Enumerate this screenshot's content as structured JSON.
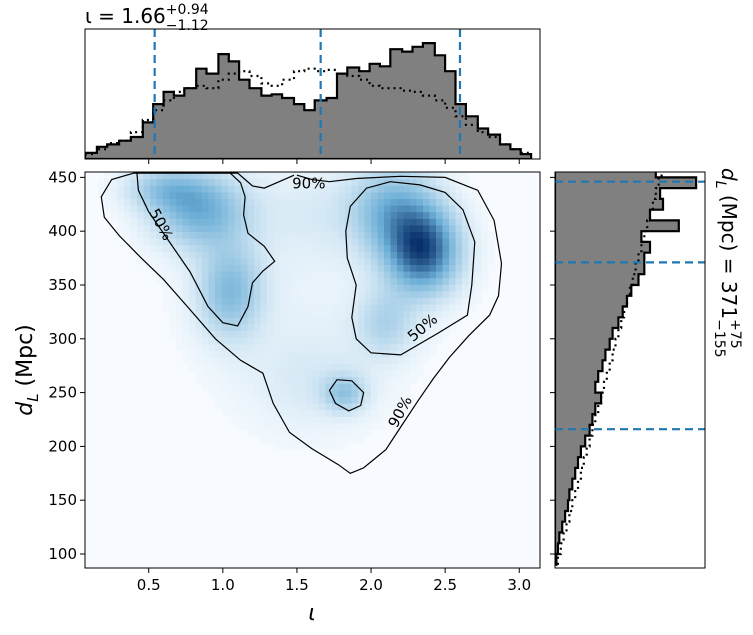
{
  "chart_data": {
    "type": "heatmap",
    "colors": {
      "density_low": "#f7fbff",
      "density_mid": "#6baed6",
      "density_high": "#08306b",
      "histogram_fill": "#808080",
      "histogram_edge": "#000000",
      "quantile_line": "#1f77b4"
    },
    "main": {
      "xlabel": "ι",
      "ylabel_main": "d",
      "ylabel_sub": "L",
      "ylabel_unit": " (Mpc)",
      "xlim": [
        0.07,
        3.14
      ],
      "ylim": [
        87,
        455
      ],
      "x_ticks": [
        0.5,
        1.0,
        1.5,
        2.0,
        2.5,
        3.0
      ],
      "x_tick_labels": [
        "0.5",
        "1.0",
        "1.5",
        "2.0",
        "2.5",
        "3.0"
      ],
      "y_ticks": [
        100,
        150,
        200,
        250,
        300,
        350,
        400,
        450
      ],
      "y_tick_labels": [
        "100",
        "150",
        "200",
        "250",
        "300",
        "350",
        "400",
        "450"
      ],
      "density_peaks": [
        {
          "x": 2.35,
          "y": 382,
          "sx": 0.17,
          "sy": 27,
          "w": 1.0
        },
        {
          "x": 2.15,
          "y": 420,
          "sx": 0.2,
          "sy": 28,
          "w": 0.55
        },
        {
          "x": 2.1,
          "y": 315,
          "sx": 0.14,
          "sy": 22,
          "w": 0.3
        },
        {
          "x": 0.85,
          "y": 420,
          "sx": 0.22,
          "sy": 24,
          "w": 0.6
        },
        {
          "x": 1.05,
          "y": 345,
          "sx": 0.15,
          "sy": 30,
          "w": 0.5
        },
        {
          "x": 0.6,
          "y": 440,
          "sx": 0.18,
          "sy": 14,
          "w": 0.35
        },
        {
          "x": 1.82,
          "y": 250,
          "sx": 0.1,
          "sy": 12,
          "w": 0.38
        },
        {
          "x": 1.6,
          "y": 260,
          "sx": 0.3,
          "sy": 32,
          "w": 0.12
        },
        {
          "x": 1.6,
          "y": 420,
          "sx": 0.28,
          "sy": 30,
          "w": 0.1
        },
        {
          "x": 1.5,
          "y": 340,
          "sx": 0.55,
          "sy": 70,
          "w": 0.06
        }
      ],
      "contours": [
        {
          "level": "90%",
          "points": [
            [
              1.48,
              452
            ],
            [
              1.38,
              446
            ],
            [
              1.28,
              440
            ],
            [
              1.2,
              442
            ],
            [
              1.15,
              448
            ],
            [
              1.1,
              454
            ],
            [
              0.4,
              454
            ],
            [
              0.25,
              448
            ],
            [
              0.18,
              432
            ],
            [
              0.2,
              413
            ],
            [
              0.3,
              396
            ],
            [
              0.45,
              375
            ],
            [
              0.6,
              355
            ],
            [
              0.76,
              330
            ],
            [
              0.95,
              300
            ],
            [
              1.12,
              280
            ],
            [
              1.27,
              268
            ],
            [
              1.34,
              240
            ],
            [
              1.45,
              213
            ],
            [
              1.6,
              198
            ],
            [
              1.78,
              183
            ],
            [
              1.86,
              175
            ],
            [
              1.95,
              180
            ],
            [
              2.1,
              197
            ],
            [
              2.2,
              218
            ],
            [
              2.32,
              243
            ],
            [
              2.42,
              263
            ],
            [
              2.53,
              283
            ],
            [
              2.66,
              303
            ],
            [
              2.8,
              322
            ],
            [
              2.86,
              340
            ],
            [
              2.88,
              370
            ],
            [
              2.83,
              410
            ],
            [
              2.72,
              438
            ],
            [
              2.5,
              450
            ],
            [
              2.2,
              451
            ],
            [
              1.9,
              449
            ],
            [
              1.72,
              446
            ],
            [
              1.6,
              448
            ],
            [
              1.5,
              452
            ]
          ],
          "closed": false
        },
        {
          "level": "50%",
          "points": [
            [
              0.42,
              454
            ],
            [
              0.43,
              438
            ],
            [
              0.5,
              418
            ],
            [
              0.62,
              394
            ],
            [
              0.78,
              362
            ],
            [
              0.9,
              330
            ],
            [
              1.0,
              315
            ],
            [
              1.1,
              312
            ],
            [
              1.17,
              330
            ],
            [
              1.2,
              352
            ],
            [
              1.27,
              363
            ],
            [
              1.35,
              372
            ],
            [
              1.28,
              386
            ],
            [
              1.17,
              398
            ],
            [
              1.14,
              415
            ],
            [
              1.15,
              432
            ],
            [
              1.12,
              445
            ],
            [
              1.05,
              454
            ]
          ],
          "closed": false
        },
        {
          "level": "50%",
          "points": [
            [
              1.84,
              375
            ],
            [
              1.9,
              350
            ],
            [
              1.87,
              320
            ],
            [
              1.9,
              300
            ],
            [
              2.0,
              287
            ],
            [
              2.2,
              285
            ],
            [
              2.45,
              305
            ],
            [
              2.65,
              322
            ],
            [
              2.68,
              350
            ],
            [
              2.7,
              390
            ],
            [
              2.62,
              420
            ],
            [
              2.5,
              436
            ],
            [
              2.33,
              443
            ],
            [
              2.13,
              446
            ],
            [
              1.97,
              440
            ],
            [
              1.86,
              423
            ],
            [
              1.83,
              400
            ],
            [
              1.84,
              375
            ]
          ],
          "closed": true
        },
        {
          "level": "50%",
          "points": [
            [
              1.72,
              252
            ],
            [
              1.77,
              262
            ],
            [
              1.87,
              261
            ],
            [
              1.95,
              250
            ],
            [
              1.93,
              238
            ],
            [
              1.85,
              233
            ],
            [
              1.76,
              240
            ],
            [
              1.72,
              252
            ]
          ],
          "closed": true
        }
      ],
      "contour_labels": [
        {
          "text": "90%",
          "x": 1.58,
          "y": 444,
          "angle": 0
        },
        {
          "text": "50%",
          "x": 0.58,
          "y": 406,
          "angle": 62
        },
        {
          "text": "50%",
          "x": 2.35,
          "y": 310,
          "angle": -40
        },
        {
          "text": "90%",
          "x": 2.2,
          "y": 232,
          "angle": -62
        }
      ]
    },
    "top_histogram": {
      "title_prefix": "ι = 1.66",
      "title_upper": "+0.94",
      "title_lower": "−1.12",
      "quantiles": [
        0.54,
        1.66,
        2.6
      ],
      "bin_edges": [
        0.07,
        0.15,
        0.22,
        0.3,
        0.38,
        0.46,
        0.53,
        0.6,
        0.67,
        0.74,
        0.82,
        0.89,
        0.97,
        1.04,
        1.11,
        1.18,
        1.26,
        1.33,
        1.4,
        1.48,
        1.55,
        1.62,
        1.7,
        1.77,
        1.84,
        1.92,
        1.99,
        2.06,
        2.13,
        2.21,
        2.28,
        2.35,
        2.43,
        2.5,
        2.57,
        2.64,
        2.72,
        2.79,
        2.87,
        2.94,
        3.01,
        3.08
      ],
      "counts": [
        0.05,
        0.1,
        0.12,
        0.15,
        0.18,
        0.3,
        0.45,
        0.55,
        0.52,
        0.58,
        0.74,
        0.7,
        0.86,
        0.8,
        0.65,
        0.58,
        0.52,
        0.53,
        0.5,
        0.45,
        0.4,
        0.48,
        0.5,
        0.7,
        0.75,
        0.72,
        0.78,
        0.76,
        0.9,
        0.88,
        0.92,
        0.95,
        0.85,
        0.72,
        0.45,
        0.35,
        0.25,
        0.2,
        0.12,
        0.08,
        0.04
      ],
      "prior_counts": [
        0.04,
        0.08,
        0.13,
        0.15,
        0.22,
        0.32,
        0.4,
        0.48,
        0.55,
        0.58,
        0.6,
        0.58,
        0.65,
        0.7,
        0.72,
        0.68,
        0.62,
        0.6,
        0.65,
        0.72,
        0.74,
        0.72,
        0.73,
        0.7,
        0.68,
        0.65,
        0.6,
        0.58,
        0.58,
        0.56,
        0.55,
        0.52,
        0.48,
        0.42,
        0.35,
        0.28,
        0.22,
        0.18,
        0.12,
        0.08,
        0.05
      ],
      "ylim": [
        0,
        1.0
      ]
    },
    "right_histogram": {
      "label_main": "d",
      "label_sub": "L",
      "label_value": " (Mpc) = 371",
      "label_upper": "+75",
      "label_lower": "−155",
      "quantiles": [
        216,
        371,
        446
      ],
      "bin_edges": [
        90,
        100,
        110,
        120,
        130,
        140,
        150,
        160,
        170,
        180,
        190,
        200,
        210,
        220,
        230,
        240,
        250,
        260,
        270,
        280,
        290,
        300,
        310,
        320,
        330,
        340,
        350,
        360,
        370,
        380,
        390,
        400,
        410,
        420,
        430,
        440,
        450,
        456
      ],
      "counts": [
        0.01,
        0.02,
        0.03,
        0.05,
        0.07,
        0.09,
        0.1,
        0.12,
        0.14,
        0.16,
        0.18,
        0.21,
        0.24,
        0.26,
        0.28,
        0.32,
        0.28,
        0.3,
        0.33,
        0.35,
        0.38,
        0.4,
        0.44,
        0.47,
        0.5,
        0.53,
        0.58,
        0.62,
        0.62,
        0.66,
        0.6,
        0.86,
        0.66,
        0.75,
        0.73,
        0.98,
        0.7
      ],
      "prior_counts": [
        0.02,
        0.04,
        0.06,
        0.08,
        0.1,
        0.12,
        0.14,
        0.16,
        0.18,
        0.2,
        0.22,
        0.24,
        0.26,
        0.28,
        0.3,
        0.32,
        0.34,
        0.36,
        0.38,
        0.4,
        0.42,
        0.44,
        0.46,
        0.48,
        0.5,
        0.52,
        0.54,
        0.56,
        0.58,
        0.6,
        0.62,
        0.64,
        0.66,
        0.68,
        0.7,
        0.72,
        0.74
      ],
      "xlim": [
        0,
        1.0
      ]
    }
  }
}
